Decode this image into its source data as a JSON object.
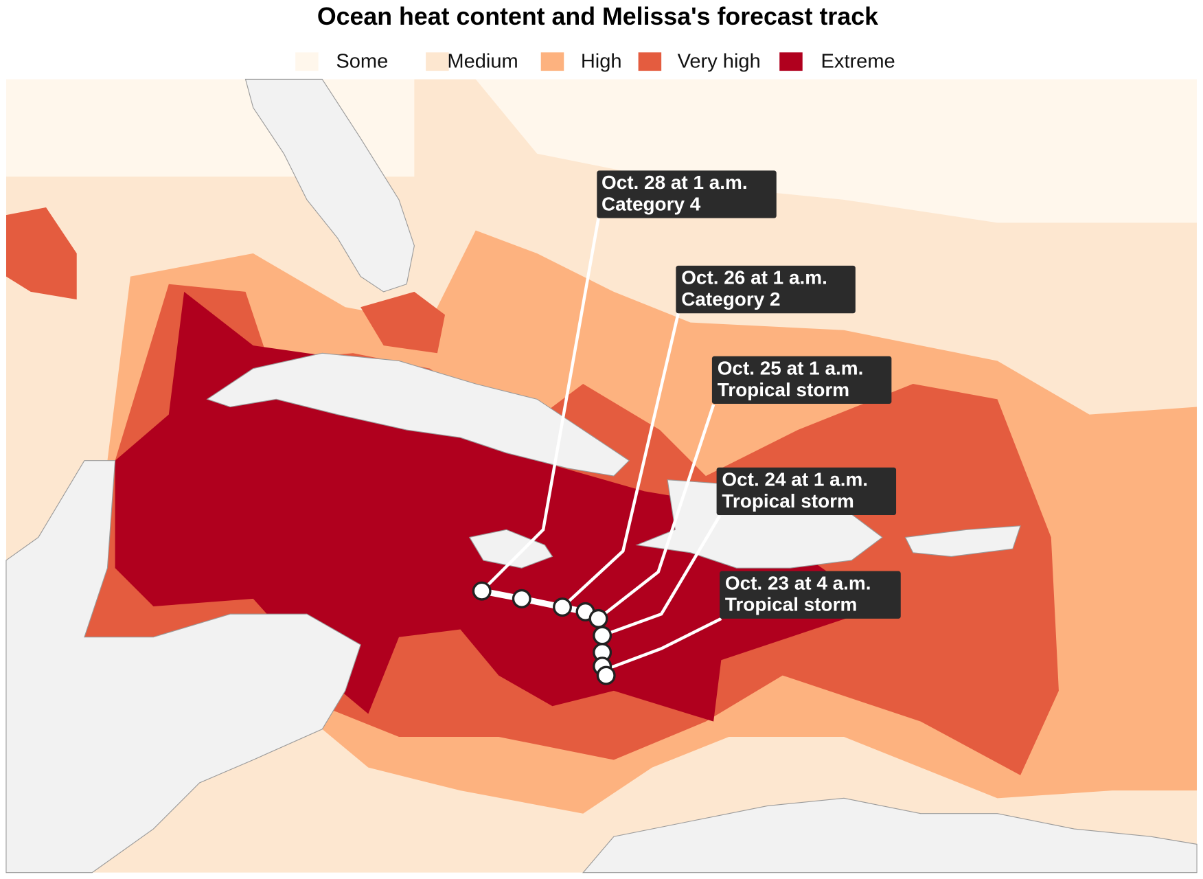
{
  "title": "Ocean heat content and Melissa's forecast track",
  "legend": {
    "items": [
      {
        "label": "Some",
        "color": "#fff7ec"
      },
      {
        "label": "Medium",
        "color": "#fde7d0"
      },
      {
        "label": "High",
        "color": "#fdb27f"
      },
      {
        "label": "Very high",
        "color": "#e45c3f"
      },
      {
        "label": "Extreme",
        "color": "#b0001e"
      }
    ]
  },
  "annotations": [
    {
      "date": "Oct. 28 at 1 a.m.",
      "category": "Category 4"
    },
    {
      "date": "Oct. 26 at 1 a.m.",
      "category": "Category 2"
    },
    {
      "date": "Oct. 25 at 1 a.m.",
      "category": "Tropical storm"
    },
    {
      "date": "Oct. 24 at 1 a.m.",
      "category": "Tropical storm"
    },
    {
      "date": "Oct. 23 at 4 a.m.",
      "category": "Tropical storm"
    }
  ]
}
